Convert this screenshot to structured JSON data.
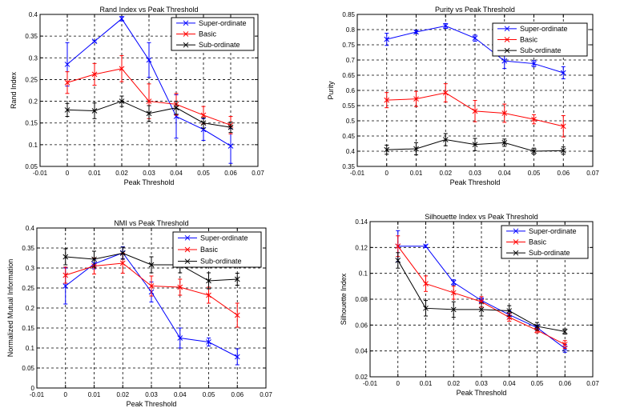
{
  "chart_data": [
    {
      "type": "line",
      "title": "Rand  Index vs Peak Threshold",
      "xlabel": "Peak Threshold",
      "ylabel": "Rand Index",
      "xlim": [
        -0.01,
        0.07
      ],
      "ylim": [
        0.05,
        0.4
      ],
      "xticks": [
        "-0.01",
        "0",
        "0.01",
        "0.02",
        "0.03",
        "0.04",
        "0.05",
        "0.06",
        "0.07"
      ],
      "yticks": [
        "0.05",
        "0.1",
        "0.15",
        "0.2",
        "0.25",
        "0.3",
        "0.35",
        "0.4"
      ],
      "grid": true,
      "legend_position": "top-right",
      "x": [
        0,
        0.01,
        0.02,
        0.03,
        0.04,
        0.05,
        0.06
      ],
      "series": [
        {
          "name": "Super-ordinate",
          "color": "#0000ff",
          "values": [
            0.285,
            0.338,
            0.39,
            0.295,
            0.165,
            0.135,
            0.097
          ],
          "errors": [
            0.05,
            0.002,
            0.005,
            0.04,
            0.05,
            0.025,
            0.04
          ]
        },
        {
          "name": "Basic",
          "color": "#ff0000",
          "values": [
            0.243,
            0.262,
            0.275,
            0.2,
            0.193,
            0.168,
            0.145
          ],
          "errors": [
            0.025,
            0.025,
            0.03,
            0.04,
            0.025,
            0.02,
            0.02
          ]
        },
        {
          "name": "Sub-ordinate",
          "color": "#000000",
          "values": [
            0.18,
            0.178,
            0.2,
            0.172,
            0.185,
            0.15,
            0.14
          ],
          "errors": [
            0.015,
            0.018,
            0.012,
            0.018,
            0.015,
            0.012,
            0.012
          ]
        }
      ]
    },
    {
      "type": "line",
      "title": "Purity vs Peak Threshold",
      "xlabel": "Peak Threshold",
      "ylabel": "Purity",
      "xlim": [
        -0.01,
        0.07
      ],
      "ylim": [
        0.35,
        0.85
      ],
      "xticks": [
        "-0.01",
        "0",
        "0.01",
        "0.02",
        "0.03",
        "0.04",
        "0.05",
        "0.06",
        "0.07"
      ],
      "yticks": [
        "0.35",
        "0.4",
        "0.45",
        "0.5",
        "0.55",
        "0.6",
        "0.65",
        "0.7",
        "0.75",
        "0.8",
        "0.85"
      ],
      "grid": true,
      "legend_position": "top-right",
      "x": [
        0,
        0.01,
        0.02,
        0.03,
        0.04,
        0.05,
        0.06
      ],
      "series": [
        {
          "name": "Super-ordinate",
          "color": "#0000ff",
          "values": [
            0.768,
            0.792,
            0.812,
            0.772,
            0.697,
            0.688,
            0.658
          ],
          "errors": [
            0.02,
            0.005,
            0.008,
            0.01,
            0.025,
            0.01,
            0.02
          ]
        },
        {
          "name": "Basic",
          "color": "#ff0000",
          "values": [
            0.568,
            0.572,
            0.592,
            0.532,
            0.525,
            0.505,
            0.482
          ],
          "errors": [
            0.025,
            0.025,
            0.03,
            0.035,
            0.03,
            0.015,
            0.035
          ]
        },
        {
          "name": "Sub-ordinate",
          "color": "#000000",
          "values": [
            0.405,
            0.408,
            0.438,
            0.422,
            0.428,
            0.4,
            0.402
          ],
          "errors": [
            0.015,
            0.02,
            0.02,
            0.02,
            0.012,
            0.01,
            0.012
          ]
        }
      ]
    },
    {
      "type": "line",
      "title": "NMI vs Peak Threshold",
      "xlabel": "Peak Threshold",
      "ylabel": "Normalized Mutual Information",
      "xlim": [
        -0.01,
        0.07
      ],
      "ylim": [
        0,
        0.4
      ],
      "xticks": [
        "-0.01",
        "0",
        "0.01",
        "0.02",
        "0.03",
        "0.04",
        "0.05",
        "0.06",
        "0.07"
      ],
      "yticks": [
        "0",
        "0.05",
        "0.1",
        "0.15",
        "0.2",
        "0.25",
        "0.3",
        "0.35",
        "0.4"
      ],
      "grid": true,
      "legend_position": "top-right",
      "x": [
        0,
        0.01,
        0.02,
        0.03,
        0.04,
        0.05,
        0.06
      ],
      "series": [
        {
          "name": "Super-ordinate",
          "color": "#0000ff",
          "values": [
            0.255,
            0.31,
            0.338,
            0.24,
            0.125,
            0.115,
            0.078
          ],
          "errors": [
            0.045,
            0.012,
            0.015,
            0.025,
            0.025,
            0.01,
            0.02
          ]
        },
        {
          "name": "Basic",
          "color": "#ff0000",
          "values": [
            0.282,
            0.305,
            0.312,
            0.255,
            0.252,
            0.232,
            0.182
          ],
          "errors": [
            0.02,
            0.02,
            0.025,
            0.025,
            0.02,
            0.02,
            0.03
          ]
        },
        {
          "name": "Sub-ordinate",
          "color": "#000000",
          "values": [
            0.328,
            0.322,
            0.337,
            0.308,
            0.308,
            0.268,
            0.272
          ],
          "errors": [
            0.02,
            0.02,
            0.015,
            0.02,
            0.02,
            0.02,
            0.015
          ]
        }
      ]
    },
    {
      "type": "line",
      "title": "Silhouette Index vs Peak Threshold",
      "xlabel": "Peak Threshold",
      "ylabel": "Silhouette Index",
      "xlim": [
        -0.01,
        0.07
      ],
      "ylim": [
        0.02,
        0.14
      ],
      "xticks": [
        "-0.01",
        "0",
        "0.01",
        "0.02",
        "0.03",
        "0.04",
        "0.05",
        "0.06",
        "0.07"
      ],
      "yticks": [
        "0.02",
        "0.04",
        "0.06",
        "0.08",
        "0.1",
        "0.12",
        "0.14"
      ],
      "grid": true,
      "legend_position": "top-right",
      "x": [
        0,
        0.01,
        0.02,
        0.03,
        0.04,
        0.05,
        0.06
      ],
      "series": [
        {
          "name": "Super-ordinate",
          "color": "#0000ff",
          "values": [
            0.121,
            0.121,
            0.093,
            0.079,
            0.068,
            0.058,
            0.042
          ],
          "errors": [
            0.012,
            0.001,
            0.002,
            0.002,
            0.003,
            0.002,
            0.003
          ]
        },
        {
          "name": "Basic",
          "color": "#ff0000",
          "values": [
            0.121,
            0.092,
            0.085,
            0.078,
            0.066,
            0.056,
            0.045
          ],
          "errors": [
            0.008,
            0.006,
            0.005,
            0.004,
            0.003,
            0.002,
            0.003
          ]
        },
        {
          "name": "Sub-ordinate",
          "color": "#000000",
          "values": [
            0.11,
            0.073,
            0.072,
            0.072,
            0.071,
            0.059,
            0.055
          ],
          "errors": [
            0.006,
            0.006,
            0.006,
            0.005,
            0.004,
            0.003,
            0.002
          ]
        }
      ]
    }
  ]
}
